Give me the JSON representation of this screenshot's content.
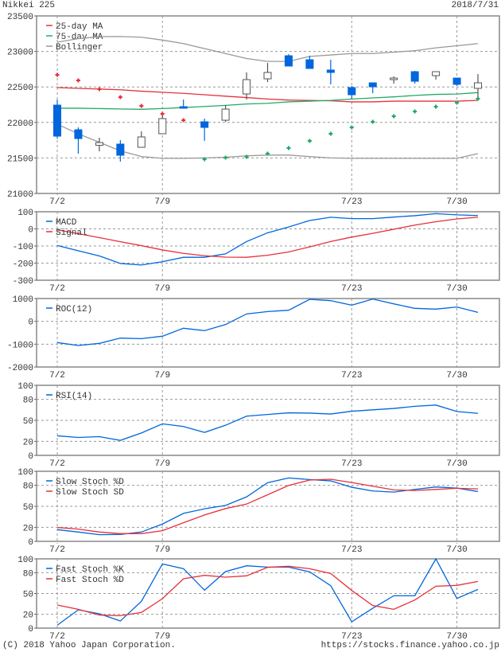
{
  "header": {
    "title": "Nikkei 225",
    "date": "2018/7/31"
  },
  "footer": {
    "copyright": "(C) 2018 Yahoo Japan Corporation.",
    "url": "https://stocks.finance.yahoo.co.jp"
  },
  "colors": {
    "blue": "#0066dd",
    "red": "#e8303a",
    "green": "#22aa66",
    "gray": "#999999",
    "up_candle": "#ffffff",
    "down_candle": "#0066dd"
  },
  "chart_data": [
    {
      "id": "price",
      "type": "candlestick",
      "x": [
        "7/2",
        "7/3",
        "7/4",
        "7/5",
        "7/6",
        "7/9",
        "7/10",
        "7/11",
        "7/12",
        "7/13",
        "7/17",
        "7/18",
        "7/19",
        "7/20",
        "7/23",
        "7/24",
        "7/25",
        "7/26",
        "7/27",
        "7/30",
        "7/31"
      ],
      "x_tick_labels": [
        "7/2",
        "7/9",
        "7/23",
        "7/30"
      ],
      "ylim": [
        21000,
        23500
      ],
      "y_ticks": [
        23500,
        23000,
        22500,
        22000,
        21500,
        21000
      ],
      "y_ticks_text": [
        "23500",
        "23000",
        "22500",
        "22000",
        "21500",
        "21000"
      ],
      "grid": [
        23000,
        22500,
        22000,
        21500
      ],
      "ohlc": [
        [
          22244,
          22322,
          21770,
          21807
        ],
        [
          21897,
          21930,
          21560,
          21773
        ],
        [
          21678,
          21785,
          21594,
          21717
        ],
        [
          21695,
          21751,
          21448,
          21538
        ],
        [
          21650,
          21874,
          21650,
          21796
        ],
        [
          21841,
          22132,
          21841,
          22054
        ],
        [
          22222,
          22323,
          22200,
          22200
        ],
        [
          22009,
          22054,
          21740,
          21930
        ],
        [
          22031,
          22244,
          22009,
          22188
        ],
        [
          22401,
          22704,
          22323,
          22603
        ],
        [
          22614,
          22838,
          22569,
          22704
        ],
        [
          22939,
          22962,
          22794,
          22794
        ],
        [
          22883,
          22939,
          22760,
          22760
        ],
        [
          22738,
          22883,
          22536,
          22704
        ],
        [
          22491,
          22513,
          22334,
          22390
        ],
        [
          22558,
          22558,
          22412,
          22502
        ],
        [
          22603,
          22648,
          22547,
          22625
        ],
        [
          22715,
          22726,
          22547,
          22580
        ],
        [
          22659,
          22715,
          22603,
          22715
        ],
        [
          22625,
          22625,
          22513,
          22536
        ],
        [
          22480,
          22681,
          22334,
          22558
        ]
      ],
      "series": [
        {
          "name": "25-day MA",
          "color": "#e8303a",
          "values": [
            22491,
            22480,
            22470,
            22460,
            22440,
            22425,
            22410,
            22390,
            22370,
            22350,
            22330,
            22315,
            22310,
            22305,
            22290,
            22290,
            22300,
            22300,
            22300,
            22300,
            22310
          ]
        },
        {
          "name": "75-day MA",
          "color": "#22aa66",
          "values": [
            22200,
            22200,
            22195,
            22190,
            22185,
            22195,
            22210,
            22225,
            22240,
            22260,
            22270,
            22290,
            22300,
            22310,
            22330,
            22345,
            22360,
            22380,
            22395,
            22400,
            22420
          ]
        },
        {
          "name": "Bollinger",
          "color": "#999999",
          "values": [
            23130,
            23180,
            23208,
            23210,
            23200,
            23160,
            23110,
            23040,
            22970,
            22900,
            22860,
            22860,
            22930,
            22950,
            22970,
            22970,
            22990,
            23010,
            23050,
            23080,
            23110
          ]
        },
        {
          "name": "",
          "color": "#999999",
          "values": [
            21975,
            21840,
            21720,
            21600,
            21520,
            21495,
            21495,
            21500,
            21510,
            21530,
            21540,
            21540,
            21520,
            21500,
            21495,
            21495,
            21495,
            21495,
            21495,
            21495,
            21560
          ]
        }
      ],
      "sar": {
        "above_color": "#e8303a",
        "below_color": "#22aa66",
        "values": [
          22670,
          22592,
          22468,
          22356,
          22233,
          22121,
          22031,
          21482,
          21504,
          21515,
          21560,
          21639,
          21740,
          21841,
          21930,
          22009,
          22087,
          22155,
          22222,
          22278,
          22334
        ],
        "above": [
          true,
          true,
          true,
          true,
          true,
          true,
          true,
          false,
          false,
          false,
          false,
          false,
          false,
          false,
          false,
          false,
          false,
          false,
          false,
          false,
          false
        ]
      }
    },
    {
      "id": "macd",
      "type": "line",
      "ylim": [
        -300,
        100
      ],
      "y_ticks": [
        100,
        0,
        -100,
        -200,
        -300
      ],
      "y_ticks_text": [
        "100",
        "0",
        "-100",
        "-200",
        "-300"
      ],
      "grid": [
        0,
        -100,
        -200
      ],
      "series": [
        {
          "name": "MACD",
          "color": "#0066dd",
          "values": [
            -97,
            -128,
            -158,
            -202,
            -211,
            -192,
            -166,
            -166,
            -146,
            -74,
            -23,
            11,
            49,
            68,
            60,
            60,
            69,
            77,
            89,
            82,
            78
          ]
        },
        {
          "name": "Signal",
          "color": "#e8303a",
          "values": [
            -6,
            -28,
            -51,
            -75,
            -98,
            -123,
            -143,
            -157,
            -165,
            -166,
            -154,
            -135,
            -105,
            -74,
            -48,
            -26,
            -2,
            22,
            42,
            58,
            68
          ]
        }
      ]
    },
    {
      "id": "roc",
      "type": "line",
      "ylim": [
        -2000,
        1000
      ],
      "y_ticks": [
        1000,
        0,
        -1000,
        -2000
      ],
      "y_ticks_text": [
        "1000",
        "0",
        "-1000",
        "-2000"
      ],
      "grid": [
        0,
        -1000
      ],
      "series": [
        {
          "name": "ROC(12)",
          "color": "#0066dd",
          "values": [
            -930,
            -1058,
            -965,
            -733,
            -756,
            -651,
            -302,
            -407,
            -140,
            326,
            430,
            488,
            965,
            907,
            709,
            977,
            767,
            570,
            535,
            628,
            395
          ]
        }
      ]
    },
    {
      "id": "rsi",
      "type": "line",
      "ylim": [
        0,
        100
      ],
      "y_ticks": [
        100,
        80,
        50,
        20,
        0
      ],
      "y_ticks_text": [
        "100",
        "80",
        "50",
        "20",
        "0"
      ],
      "grid": [
        80,
        50,
        20
      ],
      "series": [
        {
          "name": "RSI(14)",
          "color": "#0066dd",
          "values": [
            27.9,
            25.6,
            26.7,
            21.4,
            32,
            45,
            41.2,
            32.8,
            43,
            56,
            58.4,
            60.7,
            60.3,
            59,
            63,
            65,
            67,
            70,
            71.8,
            62.6,
            59.9
          ]
        }
      ]
    },
    {
      "id": "slow_stoch",
      "type": "line",
      "ylim": [
        0,
        100
      ],
      "y_ticks": [
        100,
        80,
        50,
        20,
        0
      ],
      "y_ticks_text": [
        "100",
        "80",
        "50",
        "20",
        "0"
      ],
      "grid": [
        80,
        50,
        20
      ],
      "series": [
        {
          "name": "Slow Stoch %D",
          "color": "#0066dd",
          "values": [
            16.7,
            13.3,
            9.5,
            9.9,
            13.3,
            24.7,
            39.9,
            46.4,
            51.3,
            63.5,
            83.7,
            90.5,
            88.2,
            86.3,
            77.2,
            71.9,
            70.3,
            74.1,
            77.6,
            76,
            71.1
          ]
        },
        {
          "name": "Slow Stoch SD",
          "color": "#e8303a",
          "values": [
            19.8,
            17.5,
            13.3,
            11,
            11,
            15.2,
            26.6,
            37.6,
            46.8,
            53.2,
            66.5,
            79.8,
            87.5,
            88.6,
            84,
            78.7,
            73.4,
            72.6,
            74.1,
            75.7,
            74.9
          ]
        }
      ]
    },
    {
      "id": "fast_stoch",
      "type": "line",
      "ylim": [
        0,
        100
      ],
      "y_ticks": [
        100,
        80,
        50,
        20,
        0
      ],
      "y_ticks_text": [
        "100",
        "80",
        "50",
        "20",
        "0"
      ],
      "grid": [
        80,
        50,
        20
      ],
      "series": [
        {
          "name": "Fast Stoch %K",
          "color": "#0066dd",
          "values": [
            4.2,
            26.4,
            20.7,
            10.3,
            38.7,
            92.7,
            85.8,
            54.8,
            81.6,
            90,
            88.1,
            88.1,
            81.2,
            61.3,
            9.2,
            28.7,
            46.7,
            46.7,
            100,
            42.9,
            55.9
          ]
        },
        {
          "name": "Fast Stoch %D",
          "color": "#e8303a",
          "values": [
            33.3,
            27.2,
            18.8,
            18,
            22.6,
            42.5,
            71.3,
            76.2,
            73.6,
            75.5,
            87.7,
            89.3,
            85.8,
            78.9,
            54.4,
            32.6,
            27.2,
            40.6,
            60.5,
            61.7,
            67.4
          ]
        }
      ]
    }
  ]
}
